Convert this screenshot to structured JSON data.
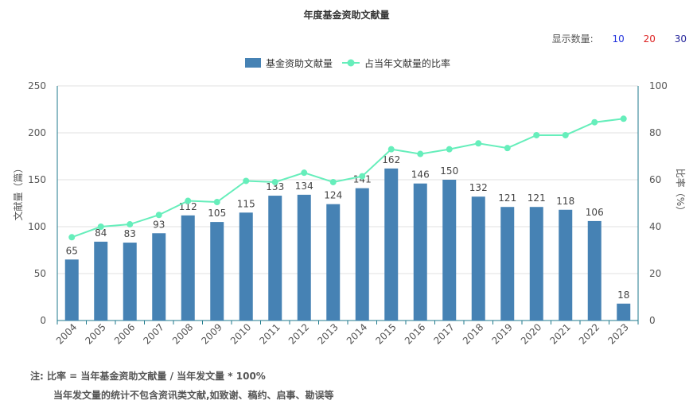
{
  "title": "年度基金资助文献量",
  "display_count": {
    "label": "显示数量:",
    "options": [
      {
        "label": "10",
        "color": "#2233dd"
      },
      {
        "label": "20",
        "color": "#dd2222"
      },
      {
        "label": "30",
        "color": "#222299"
      }
    ]
  },
  "notes": {
    "line1": "注:  比率 = 当年基金资助文献量 / 当年发文量 * 100%",
    "line2": "当年发文量的统计不包含资讯类文献,如致谢、稿约、启事、勘误等"
  },
  "colors": {
    "bar": "#4682b4",
    "line": "#66eebb",
    "axis": "#1f7a8c"
  },
  "chart_data": {
    "type": "bar",
    "categories": [
      "2004",
      "2005",
      "2006",
      "2007",
      "2008",
      "2009",
      "2010",
      "2011",
      "2012",
      "2013",
      "2014",
      "2015",
      "2016",
      "2017",
      "2018",
      "2019",
      "2020",
      "2021",
      "2022",
      "2023"
    ],
    "series": [
      {
        "name": "基金资助文献量",
        "type": "bar",
        "axis": "left",
        "values": [
          65,
          84,
          83,
          93,
          112,
          105,
          115,
          133,
          134,
          124,
          141,
          162,
          146,
          150,
          132,
          121,
          121,
          118,
          106,
          18
        ]
      },
      {
        "name": "占当年文献量的比率",
        "type": "line",
        "axis": "right",
        "values": [
          35.5,
          40,
          41,
          45,
          51,
          50.5,
          59.5,
          59,
          63,
          59,
          61.5,
          73,
          71,
          73,
          75.5,
          73.5,
          79,
          79,
          84.5,
          86
        ]
      }
    ],
    "ylabel": "文献量（篇）",
    "y2label": "比率（%）",
    "ylim": [
      0,
      250
    ],
    "y2lim": [
      0,
      100
    ],
    "yticks": [
      "0",
      "50",
      "100",
      "150",
      "200",
      "250"
    ],
    "y2ticks": [
      "0",
      "20",
      "40",
      "60",
      "80",
      "100"
    ],
    "grid": true,
    "legend_position": "top-center"
  }
}
